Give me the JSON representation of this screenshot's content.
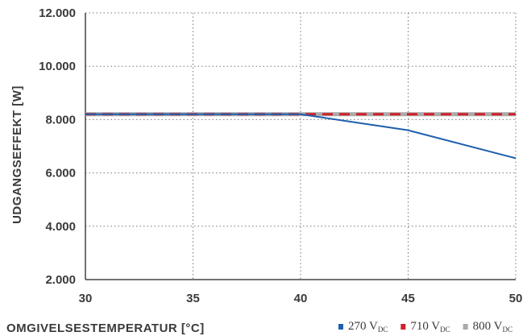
{
  "chart_data": {
    "type": "line",
    "xlabel": "OMGIVELSESTEMPERATUR [°C]",
    "ylabel": "UDGANGSEFFEKT [W]",
    "xlim": [
      30,
      50
    ],
    "ylim": [
      2000,
      12000
    ],
    "x_ticks": [
      30,
      35,
      40,
      45,
      50
    ],
    "x_tick_labels": [
      "30",
      "35",
      "40",
      "45",
      "50"
    ],
    "y_ticks": [
      2000,
      4000,
      6000,
      8000,
      10000,
      12000
    ],
    "y_tick_labels": [
      "2.000",
      "4.000",
      "6.000",
      "8.000",
      "10.000",
      "12.000"
    ],
    "grid": true,
    "legend_position": "bottom-right",
    "series": [
      {
        "label_main": "800 V",
        "label_sub": "DC",
        "color": "#aaaaaa",
        "style": "solid",
        "x": [
          30,
          50
        ],
        "y": [
          8200,
          8200
        ]
      },
      {
        "label_main": "710 V",
        "label_sub": "DC",
        "color": "#d0202a",
        "style": "dashed",
        "x": [
          30,
          50
        ],
        "y": [
          8200,
          8200
        ]
      },
      {
        "label_main": "270 V",
        "label_sub": "DC",
        "color": "#1f5fad",
        "style": "solid",
        "x": [
          30,
          40,
          45,
          50
        ],
        "y": [
          8200,
          8200,
          7600,
          6550
        ]
      }
    ],
    "legend_order": [
      2,
      1,
      0
    ]
  }
}
